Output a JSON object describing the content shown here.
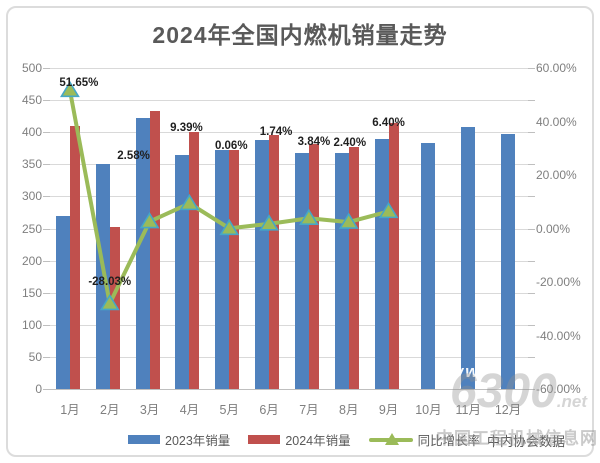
{
  "title": "2024年全国内燃机销量走势",
  "chart_data": {
    "type": "bar",
    "subtype": "grouped bars with overlaid line on secondary axis",
    "categories": [
      "1月",
      "2月",
      "3月",
      "4月",
      "5月",
      "6月",
      "7月",
      "8月",
      "9月",
      "10月",
      "11月",
      "12月"
    ],
    "series": [
      {
        "name": "2023年销量",
        "type": "bar",
        "axis": "left",
        "color": "#4F81BD",
        "values": [
          270,
          350,
          422,
          365,
          372,
          388,
          368,
          368,
          390,
          383,
          408,
          397
        ]
      },
      {
        "name": "2024年销量",
        "type": "bar",
        "axis": "left",
        "color": "#C0504D",
        "values": [
          410,
          252,
          433,
          400,
          372,
          395,
          382,
          377,
          415,
          null,
          null,
          null
        ]
      },
      {
        "name": "同比增长率",
        "type": "line",
        "axis": "right",
        "color": "#9BBB59",
        "marker": "triangle",
        "marker_stroke": "#45A7C7",
        "values": [
          51.65,
          -28.03,
          2.58,
          9.39,
          0.06,
          1.74,
          3.84,
          2.4,
          6.4,
          null,
          null,
          null
        ],
        "point_labels": [
          "51.65%",
          "-28.03%",
          "2.58%",
          "9.39%",
          "0.06%",
          "1.74%",
          "3.84%",
          "2.40%",
          "6.40%"
        ]
      }
    ],
    "left_axis": {
      "min": 0,
      "max": 500,
      "step": 50,
      "ticks": [
        "500",
        "450",
        "400",
        "350",
        "300",
        "250",
        "200",
        "150",
        "100",
        "50",
        "0"
      ]
    },
    "right_axis": {
      "min": -60,
      "max": 60,
      "step": 20,
      "ticks": [
        "60.00%",
        "40.00%",
        "20.00%",
        "0.00%",
        "-20.00%",
        "-40.00%",
        "-60.00%"
      ]
    },
    "grid": true,
    "legend_position": "bottom",
    "legend": [
      "2023年销量",
      "2024年销量",
      "同比增长率"
    ],
    "legend_suffix": "中内协会数据"
  },
  "watermarks": {
    "www": "www.",
    "big": "6300",
    "net": ".net",
    "site": "中国工程机械信息网"
  }
}
